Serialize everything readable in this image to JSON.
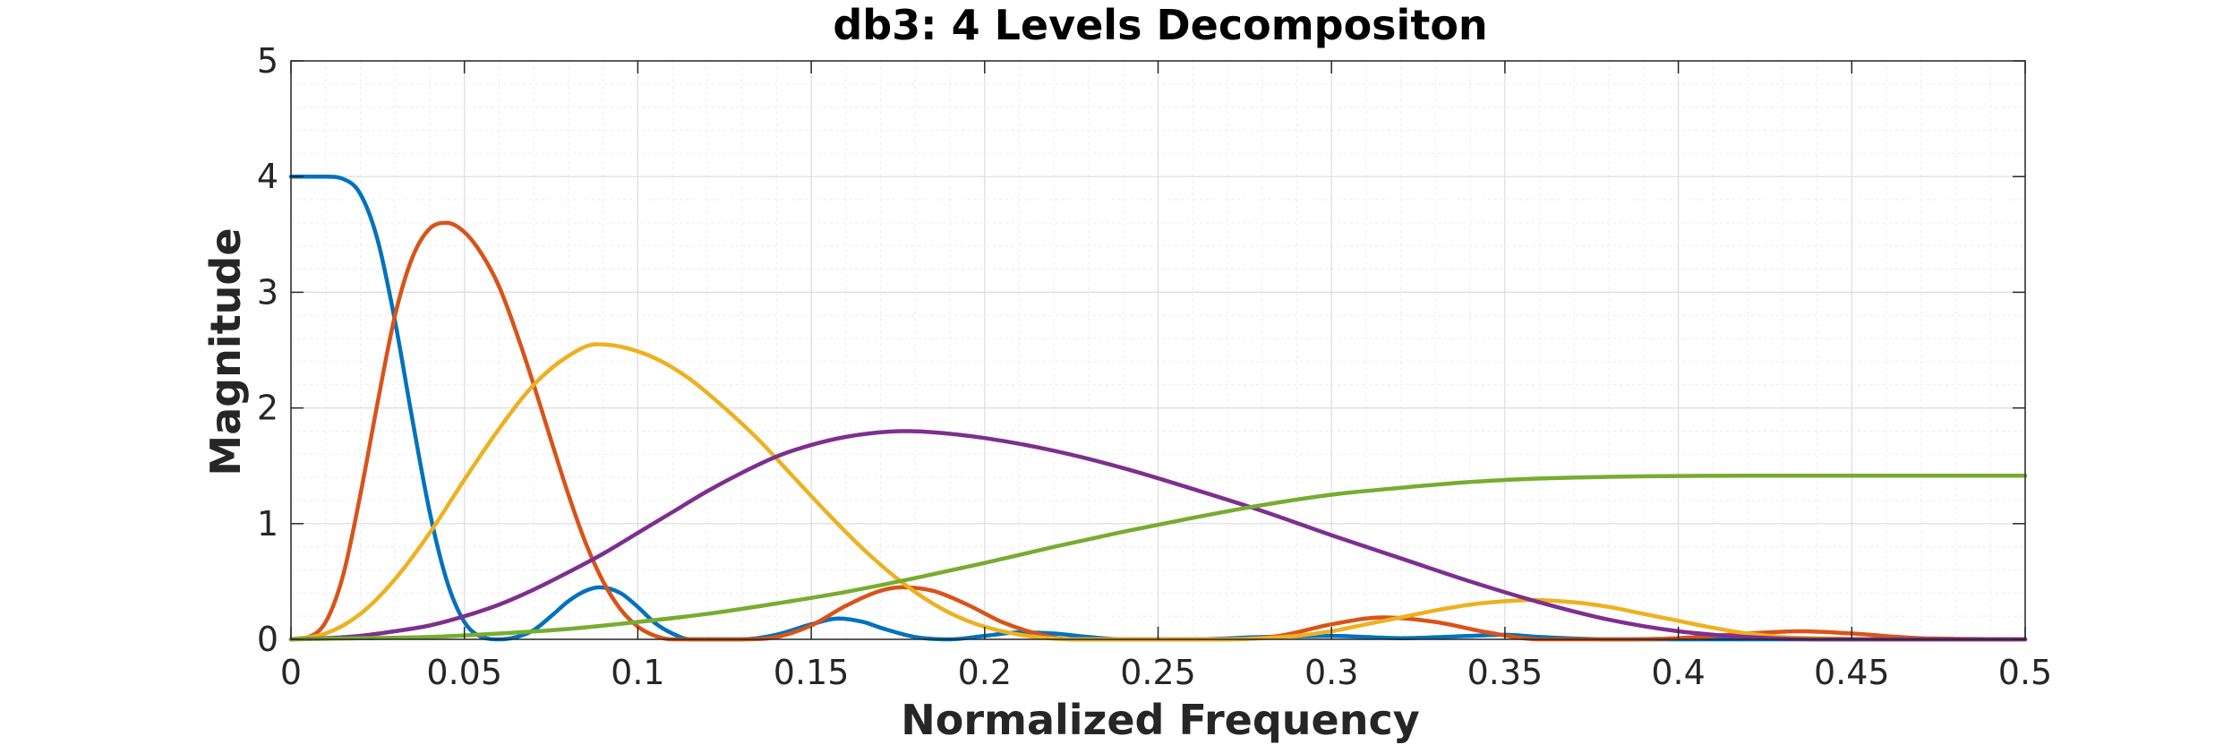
{
  "chart_data": {
    "type": "line",
    "title": "db3: 4 Levels Decompositon",
    "xlabel": "Normalized Frequency",
    "ylabel": "Magnitude",
    "xlim": [
      0,
      0.5
    ],
    "ylim": [
      0,
      5
    ],
    "xticks": [
      "0",
      "0.05",
      "0.1",
      "0.15",
      "0.2",
      "0.25",
      "0.3",
      "0.35",
      "0.4",
      "0.45",
      "0.5"
    ],
    "yticks": [
      "0",
      "1",
      "2",
      "3",
      "4",
      "5"
    ],
    "grid": true,
    "minor_grid": true,
    "series": [
      {
        "color": "#0072BD",
        "points": [
          [
            0,
            4.0
          ],
          [
            0.005,
            4.0
          ],
          [
            0.01,
            4.0
          ],
          [
            0.015,
            3.98
          ],
          [
            0.02,
            3.85
          ],
          [
            0.025,
            3.45
          ],
          [
            0.03,
            2.75
          ],
          [
            0.035,
            1.9
          ],
          [
            0.04,
            1.1
          ],
          [
            0.045,
            0.5
          ],
          [
            0.05,
            0.15
          ],
          [
            0.055,
            0.02
          ],
          [
            0.06,
            0.0
          ],
          [
            0.065,
            0.02
          ],
          [
            0.07,
            0.08
          ],
          [
            0.075,
            0.2
          ],
          [
            0.08,
            0.33
          ],
          [
            0.085,
            0.42
          ],
          [
            0.089,
            0.45
          ],
          [
            0.095,
            0.4
          ],
          [
            0.1,
            0.28
          ],
          [
            0.105,
            0.14
          ],
          [
            0.11,
            0.05
          ],
          [
            0.115,
            0.0
          ],
          [
            0.12,
            0.0
          ],
          [
            0.13,
            0.0
          ],
          [
            0.14,
            0.04
          ],
          [
            0.15,
            0.13
          ],
          [
            0.158,
            0.18
          ],
          [
            0.165,
            0.15
          ],
          [
            0.17,
            0.1
          ],
          [
            0.18,
            0.02
          ],
          [
            0.19,
            0.0
          ],
          [
            0.2,
            0.03
          ],
          [
            0.21,
            0.06
          ],
          [
            0.22,
            0.05
          ],
          [
            0.23,
            0.02
          ],
          [
            0.24,
            0.0
          ],
          [
            0.26,
            0.0
          ],
          [
            0.28,
            0.02
          ],
          [
            0.3,
            0.03
          ],
          [
            0.32,
            0.01
          ],
          [
            0.34,
            0.03
          ],
          [
            0.35,
            0.04
          ],
          [
            0.36,
            0.02
          ],
          [
            0.38,
            0.0
          ],
          [
            0.4,
            0.0
          ],
          [
            0.45,
            0.0
          ],
          [
            0.5,
            0.0
          ]
        ]
      },
      {
        "color": "#D95319",
        "points": [
          [
            0,
            0.0
          ],
          [
            0.005,
            0.02
          ],
          [
            0.01,
            0.15
          ],
          [
            0.015,
            0.55
          ],
          [
            0.02,
            1.25
          ],
          [
            0.025,
            2.05
          ],
          [
            0.03,
            2.8
          ],
          [
            0.035,
            3.3
          ],
          [
            0.04,
            3.55
          ],
          [
            0.045,
            3.6
          ],
          [
            0.05,
            3.52
          ],
          [
            0.055,
            3.33
          ],
          [
            0.06,
            3.05
          ],
          [
            0.065,
            2.65
          ],
          [
            0.07,
            2.2
          ],
          [
            0.075,
            1.72
          ],
          [
            0.08,
            1.25
          ],
          [
            0.085,
            0.83
          ],
          [
            0.09,
            0.5
          ],
          [
            0.095,
            0.26
          ],
          [
            0.1,
            0.11
          ],
          [
            0.105,
            0.03
          ],
          [
            0.11,
            0.0
          ],
          [
            0.12,
            0.0
          ],
          [
            0.13,
            0.0
          ],
          [
            0.14,
            0.02
          ],
          [
            0.15,
            0.12
          ],
          [
            0.16,
            0.29
          ],
          [
            0.17,
            0.42
          ],
          [
            0.176,
            0.45
          ],
          [
            0.185,
            0.42
          ],
          [
            0.195,
            0.3
          ],
          [
            0.205,
            0.15
          ],
          [
            0.215,
            0.05
          ],
          [
            0.225,
            0.0
          ],
          [
            0.25,
            0.0
          ],
          [
            0.27,
            0.0
          ],
          [
            0.285,
            0.03
          ],
          [
            0.3,
            0.13
          ],
          [
            0.315,
            0.19
          ],
          [
            0.33,
            0.15
          ],
          [
            0.345,
            0.06
          ],
          [
            0.36,
            0.0
          ],
          [
            0.38,
            0.0
          ],
          [
            0.4,
            0.01
          ],
          [
            0.42,
            0.05
          ],
          [
            0.435,
            0.07
          ],
          [
            0.45,
            0.05
          ],
          [
            0.47,
            0.01
          ],
          [
            0.5,
            0.0
          ]
        ]
      },
      {
        "color": "#EDB120",
        "points": [
          [
            0,
            0.0
          ],
          [
            0.01,
            0.05
          ],
          [
            0.02,
            0.22
          ],
          [
            0.03,
            0.52
          ],
          [
            0.04,
            0.92
          ],
          [
            0.05,
            1.38
          ],
          [
            0.06,
            1.82
          ],
          [
            0.07,
            2.2
          ],
          [
            0.08,
            2.45
          ],
          [
            0.088,
            2.55
          ],
          [
            0.095,
            2.53
          ],
          [
            0.105,
            2.43
          ],
          [
            0.115,
            2.25
          ],
          [
            0.125,
            2.0
          ],
          [
            0.135,
            1.72
          ],
          [
            0.145,
            1.4
          ],
          [
            0.155,
            1.08
          ],
          [
            0.165,
            0.78
          ],
          [
            0.175,
            0.52
          ],
          [
            0.185,
            0.31
          ],
          [
            0.195,
            0.16
          ],
          [
            0.205,
            0.07
          ],
          [
            0.215,
            0.02
          ],
          [
            0.225,
            0.0
          ],
          [
            0.25,
            0.0
          ],
          [
            0.27,
            0.0
          ],
          [
            0.28,
            0.01
          ],
          [
            0.29,
            0.03
          ],
          [
            0.3,
            0.07
          ],
          [
            0.31,
            0.13
          ],
          [
            0.32,
            0.19
          ],
          [
            0.33,
            0.25
          ],
          [
            0.34,
            0.3
          ],
          [
            0.35,
            0.33
          ],
          [
            0.358,
            0.34
          ],
          [
            0.37,
            0.32
          ],
          [
            0.38,
            0.28
          ],
          [
            0.39,
            0.22
          ],
          [
            0.4,
            0.16
          ],
          [
            0.41,
            0.1
          ],
          [
            0.42,
            0.05
          ],
          [
            0.43,
            0.02
          ],
          [
            0.44,
            0.01
          ],
          [
            0.46,
            0.0
          ],
          [
            0.5,
            0.0
          ]
        ]
      },
      {
        "color": "#7E2F8E",
        "points": [
          [
            0,
            0.0
          ],
          [
            0.01,
            0.01
          ],
          [
            0.02,
            0.03
          ],
          [
            0.03,
            0.07
          ],
          [
            0.04,
            0.12
          ],
          [
            0.05,
            0.2
          ],
          [
            0.06,
            0.3
          ],
          [
            0.07,
            0.43
          ],
          [
            0.08,
            0.58
          ],
          [
            0.09,
            0.74
          ],
          [
            0.1,
            0.92
          ],
          [
            0.11,
            1.1
          ],
          [
            0.12,
            1.28
          ],
          [
            0.13,
            1.44
          ],
          [
            0.14,
            1.58
          ],
          [
            0.15,
            1.68
          ],
          [
            0.16,
            1.75
          ],
          [
            0.17,
            1.79
          ],
          [
            0.176,
            1.8
          ],
          [
            0.185,
            1.79
          ],
          [
            0.2,
            1.74
          ],
          [
            0.22,
            1.63
          ],
          [
            0.24,
            1.48
          ],
          [
            0.26,
            1.3
          ],
          [
            0.28,
            1.11
          ],
          [
            0.3,
            0.9
          ],
          [
            0.32,
            0.7
          ],
          [
            0.34,
            0.5
          ],
          [
            0.36,
            0.32
          ],
          [
            0.38,
            0.17
          ],
          [
            0.4,
            0.07
          ],
          [
            0.42,
            0.02
          ],
          [
            0.44,
            0.0
          ],
          [
            0.46,
            0.0
          ],
          [
            0.5,
            0.0
          ]
        ]
      },
      {
        "color": "#77AC30",
        "points": [
          [
            0,
            0.0
          ],
          [
            0.02,
            0.01
          ],
          [
            0.04,
            0.02
          ],
          [
            0.06,
            0.05
          ],
          [
            0.08,
            0.09
          ],
          [
            0.1,
            0.15
          ],
          [
            0.12,
            0.22
          ],
          [
            0.14,
            0.31
          ],
          [
            0.16,
            0.41
          ],
          [
            0.18,
            0.53
          ],
          [
            0.2,
            0.66
          ],
          [
            0.22,
            0.8
          ],
          [
            0.24,
            0.93
          ],
          [
            0.26,
            1.05
          ],
          [
            0.28,
            1.16
          ],
          [
            0.3,
            1.25
          ],
          [
            0.32,
            1.31
          ],
          [
            0.34,
            1.36
          ],
          [
            0.36,
            1.39
          ],
          [
            0.38,
            1.405
          ],
          [
            0.4,
            1.412
          ],
          [
            0.42,
            1.414
          ],
          [
            0.45,
            1.414
          ],
          [
            0.5,
            1.414
          ]
        ]
      }
    ]
  }
}
